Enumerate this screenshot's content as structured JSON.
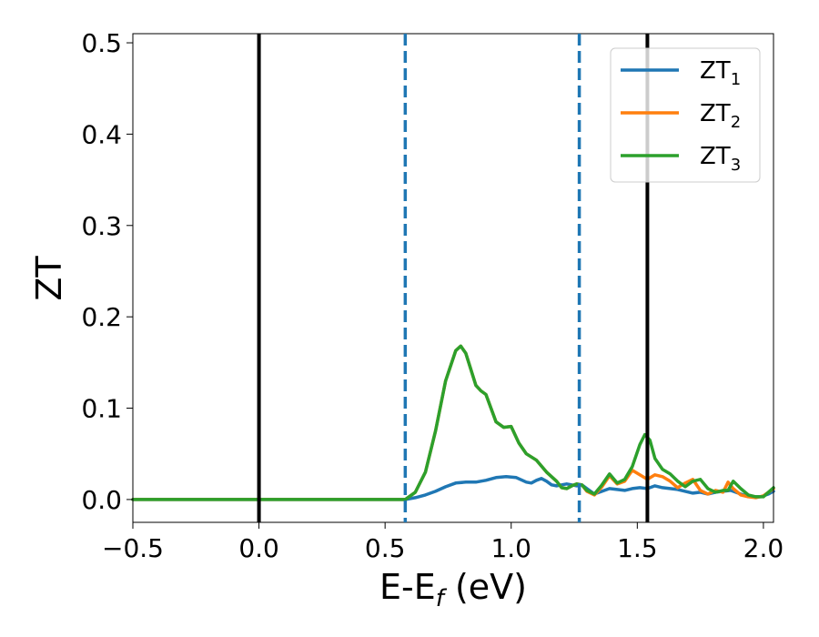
{
  "chart_data": {
    "type": "line",
    "xlabel_main": "E-E",
    "xlabel_sub": "f",
    "xlabel_unit": " (eV)",
    "ylabel": "ZT",
    "xlim": [
      -0.5,
      2.04
    ],
    "ylim": [
      -0.025,
      0.51
    ],
    "xticks": [
      -0.5,
      0.0,
      0.5,
      1.0,
      1.5,
      2.0
    ],
    "xtick_labels": [
      "−0.5",
      "0.0",
      "0.5",
      "1.0",
      "1.5",
      "2.0"
    ],
    "yticks": [
      0.0,
      0.1,
      0.2,
      0.3,
      0.4,
      0.5
    ],
    "ytick_labels": [
      "0.0",
      "0.1",
      "0.2",
      "0.3",
      "0.4",
      "0.5"
    ],
    "grid": false,
    "legend_position": "top-right",
    "colors": {
      "ZT1": "#1f77b4",
      "ZT2": "#ff7f0e",
      "ZT3": "#2ca02c",
      "vline_solid": "#000000",
      "vline_dashed": "#1f77b4"
    },
    "vlines": [
      {
        "x": 0.0,
        "style": "solid",
        "color": "#000000"
      },
      {
        "x": 1.54,
        "style": "solid",
        "color": "#000000"
      },
      {
        "x": 0.58,
        "style": "dashed",
        "color": "#1f77b4"
      },
      {
        "x": 1.27,
        "style": "dashed",
        "color": "#1f77b4"
      }
    ],
    "series": [
      {
        "name": "ZT",
        "subscript": "1",
        "color": "#1f77b4",
        "x": [
          -0.5,
          0.0,
          0.5,
          0.58,
          0.62,
          0.66,
          0.7,
          0.74,
          0.78,
          0.82,
          0.86,
          0.9,
          0.94,
          0.98,
          1.02,
          1.06,
          1.08,
          1.1,
          1.12,
          1.14,
          1.16,
          1.18,
          1.2,
          1.22,
          1.24,
          1.26,
          1.28,
          1.3,
          1.33,
          1.36,
          1.39,
          1.42,
          1.45,
          1.48,
          1.51,
          1.54,
          1.57,
          1.6,
          1.63,
          1.66,
          1.69,
          1.72,
          1.75,
          1.78,
          1.81,
          1.84,
          1.87,
          1.9,
          1.93,
          1.96,
          1.99,
          2.02,
          2.04
        ],
        "values": [
          0.0,
          0.0,
          0.0,
          0.0,
          0.002,
          0.005,
          0.009,
          0.014,
          0.018,
          0.019,
          0.019,
          0.021,
          0.024,
          0.025,
          0.024,
          0.019,
          0.018,
          0.021,
          0.023,
          0.02,
          0.016,
          0.015,
          0.016,
          0.017,
          0.016,
          0.015,
          0.016,
          0.012,
          0.006,
          0.009,
          0.012,
          0.011,
          0.01,
          0.012,
          0.013,
          0.012,
          0.015,
          0.013,
          0.012,
          0.011,
          0.009,
          0.007,
          0.008,
          0.006,
          0.008,
          0.009,
          0.01,
          0.007,
          0.004,
          0.003,
          0.003,
          0.006,
          0.009
        ]
      },
      {
        "name": "ZT",
        "subscript": "2",
        "color": "#ff7f0e",
        "x": [
          -0.5,
          0.0,
          0.5,
          0.58,
          0.62,
          0.66,
          0.7,
          0.74,
          0.78,
          0.8,
          0.82,
          0.86,
          0.88,
          0.9,
          0.94,
          0.97,
          1.0,
          1.03,
          1.06,
          1.1,
          1.14,
          1.18,
          1.2,
          1.22,
          1.24,
          1.26,
          1.28,
          1.3,
          1.33,
          1.36,
          1.39,
          1.42,
          1.45,
          1.48,
          1.51,
          1.54,
          1.57,
          1.6,
          1.63,
          1.66,
          1.69,
          1.72,
          1.75,
          1.78,
          1.81,
          1.84,
          1.86,
          1.88,
          1.91,
          1.94,
          1.97,
          2.0,
          2.04
        ],
        "values": [
          0.0,
          0.0,
          0.0,
          0.0,
          0.008,
          0.03,
          0.075,
          0.13,
          0.163,
          0.168,
          0.16,
          0.125,
          0.119,
          0.115,
          0.085,
          0.079,
          0.08,
          0.062,
          0.05,
          0.043,
          0.03,
          0.02,
          0.013,
          0.012,
          0.015,
          0.017,
          0.016,
          0.009,
          0.005,
          0.014,
          0.026,
          0.017,
          0.02,
          0.032,
          0.027,
          0.022,
          0.027,
          0.025,
          0.02,
          0.013,
          0.018,
          0.022,
          0.01,
          0.006,
          0.01,
          0.008,
          0.019,
          0.012,
          0.005,
          0.003,
          0.002,
          0.004,
          0.012
        ]
      },
      {
        "name": "ZT",
        "subscript": "3",
        "color": "#2ca02c",
        "x": [
          -0.5,
          0.0,
          0.5,
          0.58,
          0.62,
          0.66,
          0.7,
          0.74,
          0.78,
          0.8,
          0.82,
          0.86,
          0.88,
          0.9,
          0.94,
          0.97,
          1.0,
          1.03,
          1.06,
          1.1,
          1.14,
          1.18,
          1.2,
          1.22,
          1.24,
          1.26,
          1.28,
          1.3,
          1.33,
          1.36,
          1.39,
          1.42,
          1.45,
          1.48,
          1.51,
          1.53,
          1.55,
          1.57,
          1.6,
          1.63,
          1.66,
          1.69,
          1.72,
          1.75,
          1.78,
          1.81,
          1.84,
          1.86,
          1.88,
          1.91,
          1.94,
          1.97,
          2.0,
          2.04
        ],
        "values": [
          0.0,
          0.0,
          0.0,
          0.0,
          0.008,
          0.03,
          0.075,
          0.13,
          0.163,
          0.168,
          0.16,
          0.125,
          0.119,
          0.115,
          0.085,
          0.079,
          0.08,
          0.062,
          0.05,
          0.043,
          0.03,
          0.02,
          0.013,
          0.012,
          0.015,
          0.017,
          0.016,
          0.01,
          0.006,
          0.016,
          0.028,
          0.018,
          0.022,
          0.036,
          0.06,
          0.071,
          0.065,
          0.045,
          0.033,
          0.028,
          0.02,
          0.014,
          0.02,
          0.022,
          0.012,
          0.008,
          0.01,
          0.01,
          0.02,
          0.012,
          0.005,
          0.003,
          0.003,
          0.013
        ]
      }
    ]
  }
}
